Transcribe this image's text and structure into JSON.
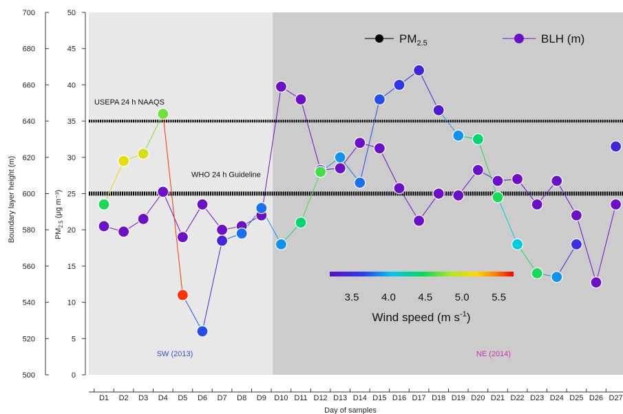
{
  "chart_data": {
    "type": "line",
    "xlabel": "Day of samples",
    "ylabel_left": "Boundary layer height (m)",
    "ylabel_right_base": "PM",
    "ylabel_right_sub": "2.5",
    "ylabel_right_units": "(μg m⁻³)",
    "categories": [
      "D1",
      "D2",
      "D3",
      "D4",
      "D5",
      "D6",
      "D7",
      "D8",
      "D9",
      "D10",
      "D11",
      "D12",
      "D13",
      "D14",
      "D15",
      "D16",
      "D17",
      "D18",
      "D19",
      "D20",
      "D21",
      "D22",
      "D23",
      "D24",
      "D25",
      "D26",
      "D27"
    ],
    "blh_axis": {
      "min": 500,
      "max": 700,
      "ticks": [
        500,
        520,
        540,
        560,
        580,
        600,
        620,
        640,
        660,
        680,
        700
      ]
    },
    "pm_axis": {
      "min": 0,
      "max": 50,
      "ticks": [
        0,
        5,
        10,
        15,
        20,
        25,
        30,
        35,
        40,
        45,
        50
      ]
    },
    "series": [
      {
        "name": "PM",
        "name_sub": "2.5",
        "axis": "right",
        "marker_color": "#111111",
        "values": [
          23.5,
          29.5,
          30.5,
          36,
          11,
          6,
          18.5,
          19.5,
          23,
          18,
          21,
          28,
          30,
          26.5,
          38,
          40,
          42,
          36.5,
          33,
          32.5,
          24.5,
          18,
          14,
          13.5,
          18,
          null,
          31.5
        ],
        "wind_speed": [
          4.5,
          5.1,
          5.0,
          4.7,
          5.6,
          3.7,
          3.4,
          3.8,
          3.8,
          3.9,
          4.4,
          4.6,
          3.9,
          3.8,
          3.7,
          3.6,
          3.4,
          3.3,
          3.9,
          4.4,
          4.5,
          4.1,
          4.5,
          3.9,
          3.5,
          null,
          3.4
        ]
      },
      {
        "name": "BLH (m)",
        "axis": "left",
        "marker_color": "#6b10c8",
        "values": [
          582,
          579,
          586,
          601,
          576,
          594,
          580,
          582,
          588,
          659,
          652,
          613,
          614,
          628,
          625,
          603,
          585,
          600,
          599,
          613,
          607,
          608,
          594,
          607,
          588,
          551,
          594
        ]
      }
    ],
    "reference_lines": [
      {
        "label": "USEPA 24 h NAAQS",
        "pm_value": 35
      },
      {
        "label": "WHO 24 h Guideline",
        "pm_value": 25
      }
    ],
    "regions": [
      {
        "label": "SW (2013)",
        "from": "D1",
        "to": "D9",
        "fill": "#e8e8e8",
        "label_color": "#3355cc"
      },
      {
        "label": "NE (2014)",
        "from": "D10",
        "to": "D27",
        "fill": "#cccccc",
        "label_color": "#cc33aa"
      }
    ],
    "colorbar": {
      "title": "Wind speed (m  s",
      "title_sup": "-1",
      "title_end": ")",
      "min": 3.2,
      "max": 5.7,
      "ticks": [
        3.5,
        4.0,
        4.5,
        5.0,
        5.5
      ],
      "tick_labels": [
        "3.5",
        "4.0",
        "4.5",
        "5.0",
        "5.5"
      ]
    },
    "legend_position": "top-right"
  }
}
